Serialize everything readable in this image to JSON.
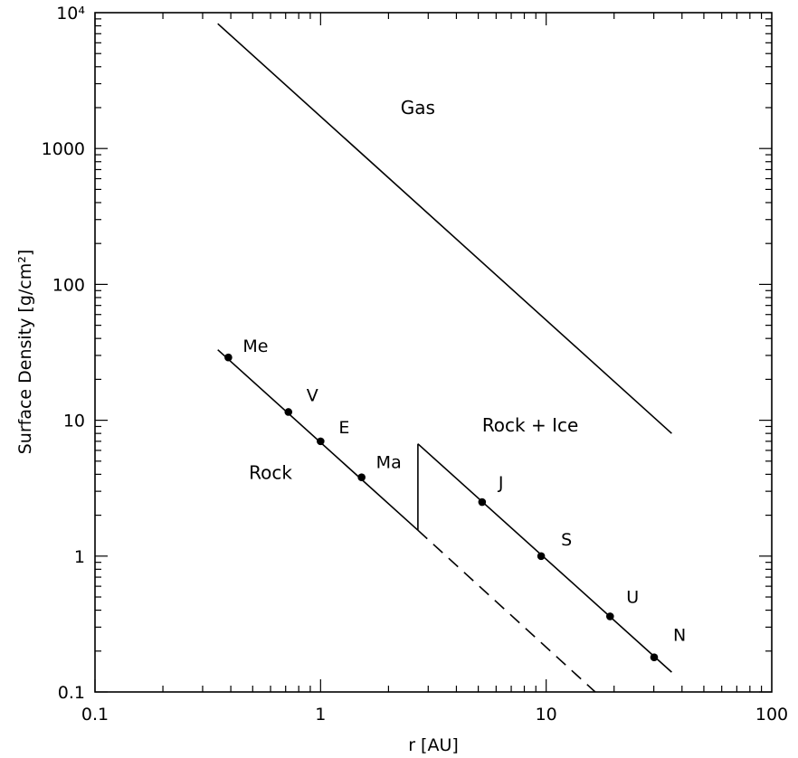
{
  "chart_data": {
    "type": "line",
    "x_scale": "log",
    "y_scale": "log",
    "xlim": [
      0.1,
      100
    ],
    "ylim": [
      0.1,
      10000
    ],
    "xlabel": "r [AU]",
    "ylabel": "Surface Density [g/cm²]",
    "x_ticks": [
      {
        "value": 0.1,
        "label": "0.1"
      },
      {
        "value": 1,
        "label": "1"
      },
      {
        "value": 10,
        "label": "10"
      },
      {
        "value": 100,
        "label": "100"
      }
    ],
    "y_ticks": [
      {
        "value": 0.1,
        "label": "0.1"
      },
      {
        "value": 1,
        "label": "1"
      },
      {
        "value": 10,
        "label": "10"
      },
      {
        "value": 100,
        "label": "100"
      },
      {
        "value": 1000,
        "label": "1000"
      },
      {
        "value": 10000,
        "label": "10⁴"
      }
    ],
    "series": [
      {
        "key": "gas",
        "style": "solid",
        "points": [
          [
            0.35,
            8300
          ],
          [
            36,
            8
          ]
        ]
      },
      {
        "key": "rock",
        "style": "solid",
        "points": [
          [
            0.35,
            33
          ],
          [
            2.7,
            1.55
          ]
        ]
      },
      {
        "key": "rock-extension",
        "style": "dashed",
        "points": [
          [
            2.7,
            1.55
          ],
          [
            16.5,
            0.1
          ]
        ]
      },
      {
        "key": "snow-line-jump",
        "style": "solid",
        "points": [
          [
            2.7,
            1.55
          ],
          [
            2.7,
            6.7
          ]
        ]
      },
      {
        "key": "rock-ice",
        "style": "solid",
        "points": [
          [
            2.7,
            6.7
          ],
          [
            36,
            0.14
          ]
        ]
      }
    ],
    "region_labels": [
      {
        "key": "gas",
        "text": "Gas",
        "x": 2.7,
        "y": 1800
      },
      {
        "key": "rock",
        "text": "Rock",
        "x": 0.6,
        "y": 3.7
      },
      {
        "key": "rock-ice",
        "text": "Rock + Ice",
        "x": 8.5,
        "y": 8.3
      }
    ],
    "planets": [
      {
        "label": "Me",
        "x": 0.39,
        "y": 29
      },
      {
        "label": "V",
        "x": 0.72,
        "y": 11.5
      },
      {
        "label": "E",
        "x": 1.0,
        "y": 7.0
      },
      {
        "label": "Ma",
        "x": 1.52,
        "y": 3.8
      },
      {
        "label": "J",
        "x": 5.2,
        "y": 2.5
      },
      {
        "label": "S",
        "x": 9.5,
        "y": 1.0
      },
      {
        "label": "U",
        "x": 19.2,
        "y": 0.36
      },
      {
        "label": "N",
        "x": 30.1,
        "y": 0.18
      }
    ]
  }
}
